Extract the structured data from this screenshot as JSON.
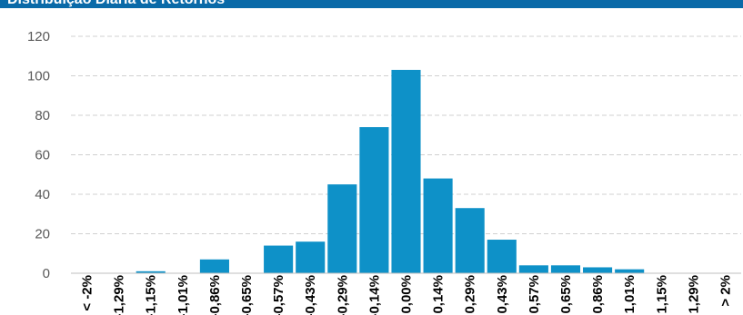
{
  "header": {
    "title": "Distribuição Diária de Retornos"
  },
  "colors": {
    "bar": "#0e91c8",
    "header": "#0a6aa8",
    "grid": "#d0d0d0"
  },
  "chart_data": {
    "type": "bar",
    "title": "Distribuição Diária de Retornos",
    "xlabel": "",
    "ylabel": "",
    "categories": [
      "< -2%",
      "-1,29%",
      "-1,15%",
      "-1,01%",
      "-0,86%",
      "-0,65%",
      "-0,57%",
      "-0,43%",
      "-0,29%",
      "-0,14%",
      "0,00%",
      "0,14%",
      "0,29%",
      "0,43%",
      "0,57%",
      "0,65%",
      "0,86%",
      "1,01%",
      "1,15%",
      "1,29%",
      "> 2%"
    ],
    "values": [
      0,
      0,
      1,
      0,
      7,
      0,
      14,
      16,
      45,
      74,
      103,
      48,
      33,
      17,
      4,
      4,
      3,
      2,
      0,
      0,
      0
    ],
    "ylim": [
      0,
      120
    ],
    "yticks": [
      0,
      20,
      40,
      60,
      80,
      100,
      120
    ],
    "grid": true
  }
}
